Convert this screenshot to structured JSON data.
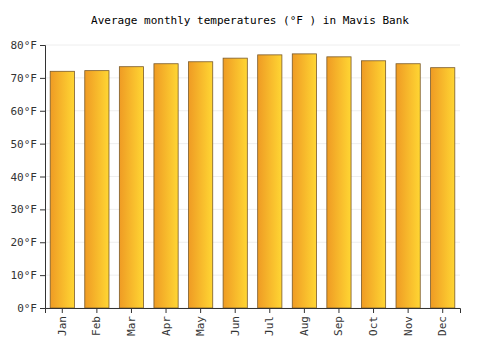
{
  "chart_data": {
    "type": "bar",
    "title": "Average monthly temperatures (°F ) in Mavis Bank",
    "categories": [
      "Jan",
      "Feb",
      "Mar",
      "Apr",
      "May",
      "Jun",
      "Jul",
      "Aug",
      "Sep",
      "Oct",
      "Nov",
      "Dec"
    ],
    "values": [
      72.0,
      72.2,
      73.4,
      74.3,
      74.9,
      76.0,
      77.0,
      77.3,
      76.4,
      75.2,
      74.3,
      73.1
    ],
    "color": "#fca326",
    "ylim": [
      0,
      80
    ],
    "yticks": [
      {
        "value": 0,
        "label": "0°F"
      },
      {
        "value": 10,
        "label": "10°F"
      },
      {
        "value": 20,
        "label": "20°F"
      },
      {
        "value": 30,
        "label": "30°F"
      },
      {
        "value": 40,
        "label": "40°F"
      },
      {
        "value": 50,
        "label": "50°F"
      },
      {
        "value": 60,
        "label": "60°F"
      },
      {
        "value": 70,
        "label": "70°F"
      },
      {
        "value": 80,
        "label": "80°F"
      }
    ],
    "grid": true
  }
}
